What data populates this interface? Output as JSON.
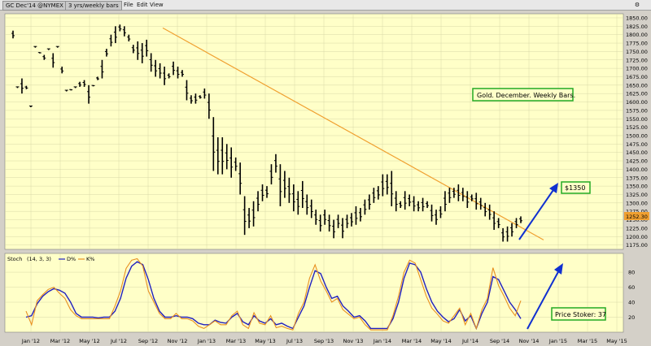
{
  "window": {
    "symbol": "GC Dec'14 @NYMEX",
    "timeframe": "3 yrs/weekly bars",
    "menu": [
      "File",
      "Edit",
      "View"
    ]
  },
  "colors": {
    "background": "#ffffc8",
    "price_bar": "#000000",
    "trendline": "#f0a030",
    "stoch_d": "#2020c0",
    "stoch_k": "#e89020",
    "annotation_box": "#22aa22",
    "arrow": "#1030d0",
    "last_price_bg": "#f0a030"
  },
  "chart_data": [
    {
      "type": "ohlc",
      "title": "",
      "panel": "price",
      "x_ticks": [
        "Jan '12",
        "Mar '12",
        "May '12",
        "Jul '12",
        "Sep '12",
        "Nov '12",
        "Jan '13",
        "Mar '13",
        "May '13",
        "Jul '13",
        "Sep '13",
        "Nov '13",
        "Jan '14",
        "Mar '14",
        "May '14",
        "Jul '14",
        "Sep '14",
        "Nov '14",
        "Jan '15",
        "Mar '15",
        "May '15"
      ],
      "y_ticks": [
        1175,
        1200,
        1225,
        1250,
        1275,
        1300,
        1325,
        1350,
        1375,
        1400,
        1425,
        1450,
        1475,
        1500,
        1525,
        1550,
        1575,
        1600,
        1625,
        1650,
        1675,
        1700,
        1725,
        1750,
        1775,
        1800,
        1825,
        1850
      ],
      "ylim": [
        1162,
        1862
      ],
      "last_price": "1252.30",
      "bars_hl": [
        [
          1812,
          1789
        ],
        [
          1645,
          1645
        ],
        [
          1670,
          1625
        ],
        [
          1648,
          1638
        ],
        [
          1588,
          1588
        ],
        [
          1765,
          1765
        ],
        [
          1748,
          1745
        ],
        [
          1740,
          1725
        ],
        [
          1758,
          1758
        ],
        [
          1745,
          1702
        ],
        [
          1765,
          1765
        ],
        [
          1705,
          1685
        ],
        [
          1635,
          1635
        ],
        [
          1638,
          1635
        ],
        [
          1645,
          1645
        ],
        [
          1660,
          1645
        ],
        [
          1665,
          1645
        ],
        [
          1650,
          1595
        ],
        [
          1650,
          1648
        ],
        [
          1675,
          1665
        ],
        [
          1725,
          1670
        ],
        [
          1758,
          1735
        ],
        [
          1800,
          1765
        ],
        [
          1825,
          1775
        ],
        [
          1830,
          1810
        ],
        [
          1825,
          1795
        ],
        [
          1800,
          1780
        ],
        [
          1770,
          1745
        ],
        [
          1780,
          1725
        ],
        [
          1775,
          1715
        ],
        [
          1785,
          1735
        ],
        [
          1745,
          1690
        ],
        [
          1725,
          1675
        ],
        [
          1715,
          1670
        ],
        [
          1705,
          1650
        ],
        [
          1685,
          1670
        ],
        [
          1720,
          1680
        ],
        [
          1705,
          1670
        ],
        [
          1695,
          1675
        ],
        [
          1665,
          1605
        ],
        [
          1620,
          1595
        ],
        [
          1625,
          1595
        ],
        [
          1620,
          1610
        ],
        [
          1640,
          1610
        ],
        [
          1625,
          1550
        ],
        [
          1555,
          1395
        ],
        [
          1495,
          1385
        ],
        [
          1495,
          1385
        ],
        [
          1475,
          1400
        ],
        [
          1465,
          1375
        ],
        [
          1435,
          1395
        ],
        [
          1420,
          1325
        ],
        [
          1320,
          1205
        ],
        [
          1285,
          1225
        ],
        [
          1305,
          1230
        ],
        [
          1335,
          1275
        ],
        [
          1355,
          1305
        ],
        [
          1350,
          1315
        ],
        [
          1415,
          1355
        ],
        [
          1445,
          1390
        ],
        [
          1415,
          1290
        ],
        [
          1395,
          1315
        ],
        [
          1375,
          1300
        ],
        [
          1355,
          1275
        ],
        [
          1335,
          1265
        ],
        [
          1365,
          1285
        ],
        [
          1325,
          1265
        ],
        [
          1310,
          1255
        ],
        [
          1280,
          1235
        ],
        [
          1265,
          1215
        ],
        [
          1280,
          1235
        ],
        [
          1265,
          1215
        ],
        [
          1250,
          1195
        ],
        [
          1265,
          1225
        ],
        [
          1255,
          1195
        ],
        [
          1265,
          1225
        ],
        [
          1270,
          1230
        ],
        [
          1290,
          1235
        ],
        [
          1285,
          1245
        ],
        [
          1310,
          1265
        ],
        [
          1325,
          1280
        ],
        [
          1345,
          1300
        ],
        [
          1350,
          1310
        ],
        [
          1385,
          1320
        ],
        [
          1385,
          1325
        ],
        [
          1395,
          1290
        ],
        [
          1335,
          1275
        ],
        [
          1305,
          1285
        ],
        [
          1335,
          1280
        ],
        [
          1325,
          1290
        ],
        [
          1320,
          1275
        ],
        [
          1305,
          1275
        ],
        [
          1315,
          1275
        ],
        [
          1305,
          1285
        ],
        [
          1295,
          1245
        ],
        [
          1280,
          1235
        ],
        [
          1290,
          1255
        ],
        [
          1335,
          1275
        ],
        [
          1345,
          1300
        ],
        [
          1345,
          1315
        ],
        [
          1355,
          1305
        ],
        [
          1345,
          1305
        ],
        [
          1335,
          1285
        ],
        [
          1325,
          1305
        ],
        [
          1330,
          1280
        ],
        [
          1315,
          1280
        ],
        [
          1300,
          1260
        ],
        [
          1295,
          1250
        ],
        [
          1275,
          1220
        ],
        [
          1255,
          1225
        ],
        [
          1225,
          1185
        ],
        [
          1230,
          1185
        ],
        [
          1240,
          1200
        ],
        [
          1255,
          1225
        ],
        [
          1260,
          1240
        ]
      ],
      "trendline": {
        "from": {
          "x": "Oct '12",
          "y": 1820
        },
        "to": {
          "x": "Dec '14",
          "y": 1190
        }
      },
      "annotations": [
        "Gold. December. Weekly Bars.",
        "$1350"
      ]
    },
    {
      "type": "line",
      "panel": "stochastics",
      "label": "Stoch (14, 3, 3)",
      "series": [
        {
          "name": "D%",
          "values": [
            20,
            22,
            38,
            48,
            54,
            58,
            56,
            52,
            40,
            25,
            20,
            20,
            20,
            19,
            20,
            20,
            28,
            45,
            72,
            88,
            94,
            90,
            70,
            45,
            28,
            20,
            20,
            22,
            20,
            20,
            18,
            12,
            10,
            10,
            16,
            13,
            12,
            20,
            25,
            14,
            10,
            22,
            15,
            12,
            18,
            10,
            12,
            8,
            5,
            20,
            35,
            60,
            82,
            78,
            60,
            45,
            48,
            35,
            28,
            20,
            22,
            15,
            5,
            5,
            5,
            5,
            18,
            40,
            72,
            92,
            90,
            80,
            58,
            40,
            28,
            20,
            14,
            18,
            30,
            15,
            22,
            5,
            25,
            40,
            74,
            70,
            55,
            40,
            30,
            18
          ]
        },
        {
          "name": "K%",
          "values": [
            28,
            10,
            42,
            50,
            57,
            60,
            52,
            45,
            30,
            22,
            18,
            18,
            18,
            18,
            18,
            18,
            35,
            55,
            85,
            96,
            98,
            88,
            55,
            40,
            25,
            18,
            18,
            25,
            18,
            18,
            15,
            8,
            5,
            10,
            15,
            10,
            10,
            22,
            28,
            10,
            5,
            26,
            12,
            10,
            22,
            6,
            8,
            5,
            3,
            25,
            40,
            72,
            90,
            68,
            55,
            40,
            45,
            30,
            24,
            18,
            20,
            10,
            3,
            3,
            3,
            3,
            22,
            48,
            80,
            96,
            92,
            70,
            48,
            32,
            24,
            15,
            12,
            22,
            32,
            10,
            25,
            5,
            30,
            45,
            86,
            62,
            48,
            32,
            22,
            42
          ]
        }
      ],
      "y_ticks": [
        20,
        40,
        60,
        80
      ],
      "ylim": [
        0,
        105
      ]
    }
  ],
  "stoch_header": {
    "name": "Stoch",
    "params": "(14, 3, 3)",
    "d_label": "D%",
    "k_label": "K%"
  },
  "price_stoker": "Price Stoker: 37"
}
